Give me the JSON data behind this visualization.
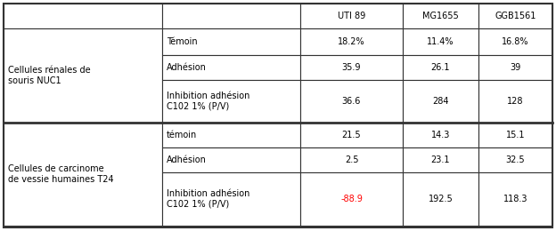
{
  "col_headers": [
    "",
    "",
    "UTI 89",
    "MG1655",
    "GGB1561"
  ],
  "group1_label": "Cellules rénales de\nsouris NUC1",
  "group2_label": "Cellules de carcinome\nde vessie humaines T24",
  "rows": [
    {
      "col1": "Témoin",
      "col2": "18.2%",
      "col3": "11.4%",
      "col4": "16.8%",
      "col2_color": "black",
      "col3_color": "black",
      "col4_color": "black"
    },
    {
      "col1": "Adhésion",
      "col2": "35.9",
      "col3": "26.1",
      "col4": "39",
      "col2_color": "black",
      "col3_color": "black",
      "col4_color": "black"
    },
    {
      "col1": "Inhibition adhésion\nC102 1% (P/V)",
      "col2": "36.6",
      "col3": "284",
      "col4": "128",
      "col2_color": "black",
      "col3_color": "black",
      "col4_color": "black"
    },
    {
      "col1": "témoin",
      "col2": "21.5",
      "col3": "14.3",
      "col4": "15.1",
      "col2_color": "black",
      "col3_color": "black",
      "col4_color": "black"
    },
    {
      "col1": "Adhésion",
      "col2": "2.5",
      "col3": "23.1",
      "col4": "32.5",
      "col2_color": "black",
      "col3_color": "black",
      "col4_color": "black"
    },
    {
      "col1": "Inhibition adhésion\nC102 1% (P/V)",
      "col2": "-88.9",
      "col3": "192.5",
      "col4": "118.3",
      "col2_color": "red",
      "col3_color": "black",
      "col4_color": "black"
    }
  ],
  "font_size": 7.0,
  "border_color": "#333333",
  "figsize": [
    6.24,
    2.6
  ],
  "dpi": 100
}
